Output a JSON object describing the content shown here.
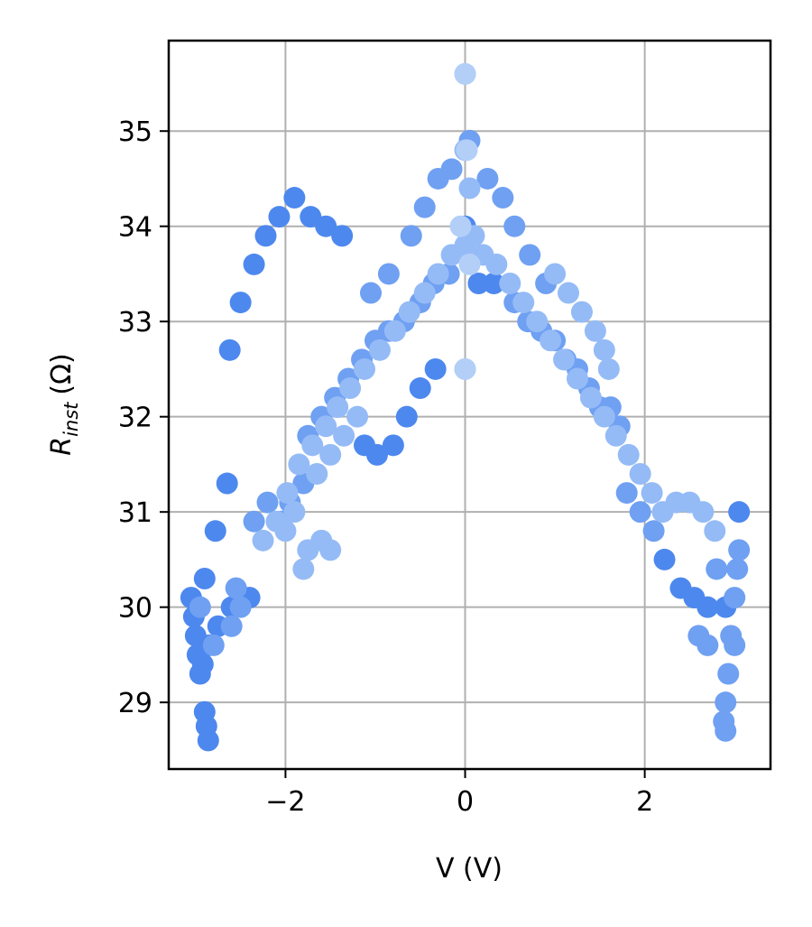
{
  "chart_data": {
    "type": "scatter",
    "xlabel": "V (V)",
    "ylabel_main": "R",
    "ylabel_sub": "inst",
    "ylabel_unit": "(Ω)",
    "xlim": [
      -3.3,
      3.4
    ],
    "ylim": [
      28.3,
      35.95
    ],
    "x_ticks": [
      -2,
      0,
      2
    ],
    "x_tick_labels": [
      "−2",
      "0",
      "2"
    ],
    "y_ticks": [
      29,
      30,
      31,
      32,
      33,
      34,
      35
    ],
    "y_tick_labels": [
      "29",
      "30",
      "31",
      "32",
      "33",
      "34",
      "35"
    ],
    "grid": true,
    "colors": {
      "dark": "#4d88ee",
      "mid": "#6fa0f2",
      "light": "#95bbf6",
      "pale": "#b3cff8"
    },
    "series": [
      {
        "color_key": "dark",
        "points": [
          [
            -3.05,
            30.1
          ],
          [
            -3.02,
            29.9
          ],
          [
            -3.0,
            29.7
          ],
          [
            -2.98,
            29.5
          ],
          [
            -2.95,
            29.3
          ],
          [
            -2.92,
            29.4
          ],
          [
            -2.9,
            30.3
          ],
          [
            -2.78,
            30.8
          ],
          [
            -2.65,
            31.3
          ],
          [
            -2.62,
            32.7
          ],
          [
            -2.5,
            33.2
          ],
          [
            -2.35,
            33.6
          ],
          [
            -2.22,
            33.9
          ],
          [
            -2.07,
            34.1
          ],
          [
            -1.9,
            34.3
          ],
          [
            -1.72,
            34.1
          ],
          [
            -1.55,
            34.0
          ],
          [
            -1.37,
            33.9
          ],
          [
            -1.12,
            31.7
          ],
          [
            -0.98,
            31.6
          ],
          [
            -0.8,
            31.7
          ],
          [
            -0.65,
            32.0
          ],
          [
            -0.5,
            32.3
          ],
          [
            -0.33,
            32.5
          ],
          [
            -2.85,
            29.6
          ],
          [
            -2.75,
            29.8
          ],
          [
            -2.6,
            30.0
          ],
          [
            -2.45,
            30.1
          ],
          [
            -2.4,
            30.1
          ],
          [
            -2.9,
            28.9
          ],
          [
            -2.88,
            28.75
          ],
          [
            -2.86,
            28.6
          ],
          [
            0.0,
            34.0
          ],
          [
            0.15,
            33.4
          ],
          [
            0.32,
            33.4
          ],
          [
            2.22,
            30.5
          ],
          [
            2.4,
            30.2
          ],
          [
            2.55,
            30.1
          ],
          [
            2.7,
            30.0
          ],
          [
            2.9,
            30.0
          ],
          [
            3.05,
            31.0
          ]
        ]
      },
      {
        "color_key": "mid",
        "points": [
          [
            -2.35,
            30.9
          ],
          [
            -2.2,
            31.1
          ],
          [
            -2.05,
            30.9
          ],
          [
            -1.95,
            31.1
          ],
          [
            -1.8,
            31.3
          ],
          [
            -1.75,
            31.8
          ],
          [
            -1.6,
            32.0
          ],
          [
            -1.45,
            32.2
          ],
          [
            -1.3,
            32.4
          ],
          [
            -1.15,
            32.6
          ],
          [
            -1.0,
            32.8
          ],
          [
            -0.85,
            32.9
          ],
          [
            -0.68,
            33.0
          ],
          [
            -0.5,
            33.2
          ],
          [
            -0.35,
            33.4
          ],
          [
            -0.18,
            33.5
          ],
          [
            -1.05,
            33.3
          ],
          [
            -0.85,
            33.5
          ],
          [
            -0.6,
            33.9
          ],
          [
            -0.45,
            34.2
          ],
          [
            -0.3,
            34.5
          ],
          [
            -0.15,
            34.6
          ],
          [
            0.05,
            34.9
          ],
          [
            0.25,
            34.5
          ],
          [
            0.42,
            34.3
          ],
          [
            0.55,
            34.0
          ],
          [
            0.72,
            33.7
          ],
          [
            0.9,
            33.4
          ],
          [
            0.55,
            33.2
          ],
          [
            0.7,
            33.0
          ],
          [
            0.85,
            32.9
          ],
          [
            1.0,
            32.8
          ],
          [
            1.12,
            32.6
          ],
          [
            1.25,
            32.5
          ],
          [
            1.38,
            32.3
          ],
          [
            1.5,
            32.1
          ],
          [
            1.62,
            32.1
          ],
          [
            1.72,
            31.9
          ],
          [
            1.8,
            31.2
          ],
          [
            1.95,
            31.0
          ],
          [
            2.1,
            30.8
          ],
          [
            2.6,
            29.7
          ],
          [
            2.7,
            29.6
          ],
          [
            2.8,
            30.4
          ],
          [
            -2.95,
            30.0
          ],
          [
            -2.8,
            29.6
          ],
          [
            -2.6,
            29.8
          ],
          [
            -2.5,
            30.0
          ],
          [
            -2.55,
            30.2
          ],
          [
            2.88,
            28.8
          ],
          [
            2.9,
            29.0
          ],
          [
            2.93,
            29.3
          ],
          [
            2.96,
            29.7
          ],
          [
            3.0,
            30.1
          ],
          [
            3.03,
            30.4
          ],
          [
            3.05,
            30.6
          ],
          [
            2.9,
            28.7
          ],
          [
            3.0,
            29.6
          ]
        ]
      },
      {
        "color_key": "light",
        "points": [
          [
            -2.25,
            30.7
          ],
          [
            -2.1,
            30.9
          ],
          [
            -1.98,
            31.2
          ],
          [
            -1.85,
            31.5
          ],
          [
            -1.7,
            31.7
          ],
          [
            -1.55,
            31.9
          ],
          [
            -1.42,
            32.1
          ],
          [
            -1.28,
            32.3
          ],
          [
            -1.12,
            32.5
          ],
          [
            -0.95,
            32.7
          ],
          [
            -0.78,
            32.9
          ],
          [
            -0.62,
            33.1
          ],
          [
            -0.45,
            33.3
          ],
          [
            -0.3,
            33.5
          ],
          [
            -0.15,
            33.7
          ],
          [
            0.0,
            33.8
          ],
          [
            0.1,
            33.9
          ],
          [
            0.2,
            33.7
          ],
          [
            0.35,
            33.6
          ],
          [
            0.5,
            33.4
          ],
          [
            0.65,
            33.2
          ],
          [
            0.8,
            33.0
          ],
          [
            0.95,
            32.8
          ],
          [
            1.1,
            32.6
          ],
          [
            1.25,
            32.4
          ],
          [
            1.4,
            32.2
          ],
          [
            1.55,
            32.0
          ],
          [
            1.68,
            31.8
          ],
          [
            1.82,
            31.6
          ],
          [
            1.95,
            31.4
          ],
          [
            2.08,
            31.2
          ],
          [
            2.2,
            31.0
          ],
          [
            2.35,
            31.1
          ],
          [
            2.5,
            31.1
          ],
          [
            2.65,
            31.0
          ],
          [
            2.78,
            30.8
          ],
          [
            -1.75,
            30.6
          ],
          [
            -1.6,
            30.7
          ],
          [
            -1.5,
            30.6
          ],
          [
            -1.8,
            30.4
          ],
          [
            0.0,
            35.6
          ],
          [
            0.0,
            32.5
          ],
          [
            0.0,
            34.8
          ],
          [
            0.05,
            34.4
          ],
          [
            1.0,
            33.5
          ],
          [
            1.15,
            33.3
          ],
          [
            1.3,
            33.1
          ],
          [
            1.45,
            32.9
          ],
          [
            1.55,
            32.7
          ],
          [
            1.6,
            32.5
          ],
          [
            -1.2,
            32.0
          ],
          [
            -1.35,
            31.8
          ],
          [
            -1.5,
            31.6
          ],
          [
            -1.65,
            31.4
          ],
          [
            -1.9,
            31.0
          ],
          [
            -2.0,
            30.8
          ]
        ]
      },
      {
        "color_key": "pale",
        "points": [
          [
            0.0,
            35.6
          ],
          [
            0.0,
            32.5
          ],
          [
            -0.05,
            34.0
          ],
          [
            0.05,
            33.6
          ],
          [
            0.02,
            34.8
          ]
        ]
      }
    ]
  }
}
